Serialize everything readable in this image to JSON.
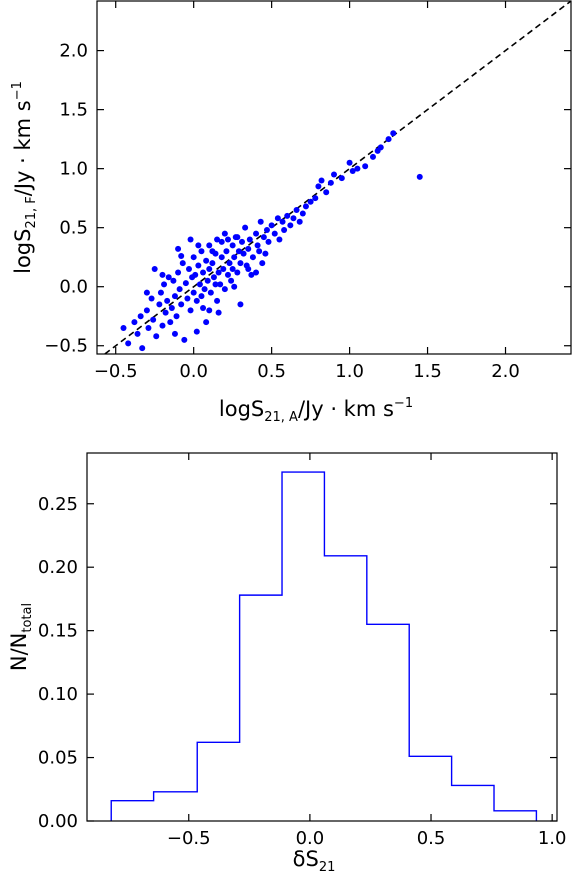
{
  "chart_data": [
    {
      "type": "scatter",
      "xlabel": {
        "main": "logS",
        "sub": "21, A",
        "unit": "/Jy · km s",
        "sup": "−1"
      },
      "ylabel": {
        "main": "logS",
        "sub": "21, F",
        "unit": "/Jy · km s",
        "sup": "−1"
      },
      "xlim": [
        -0.62,
        2.42
      ],
      "ylim": [
        -0.57,
        2.42
      ],
      "xticks": [
        -0.5,
        0.0,
        0.5,
        1.0,
        1.5,
        2.0
      ],
      "yticks": [
        -0.5,
        0.0,
        0.5,
        1.0,
        1.5,
        2.0
      ],
      "xtick_labels": [
        "−0.5",
        "0.0",
        "0.5",
        "1.0",
        "1.5",
        "2.0"
      ],
      "ytick_labels": [
        "−0.5",
        "0.0",
        "0.5",
        "1.0",
        "1.5",
        "2.0"
      ],
      "reference_line": {
        "style": "dashed",
        "color": "#000000",
        "slope": 1,
        "intercept": 0
      },
      "point_color": "#0000ff",
      "points": [
        [
          -0.45,
          -0.35
        ],
        [
          -0.42,
          -0.48
        ],
        [
          -0.38,
          -0.3
        ],
        [
          -0.36,
          -0.4
        ],
        [
          -0.34,
          -0.25
        ],
        [
          -0.33,
          -0.52
        ],
        [
          -0.3,
          -0.2
        ],
        [
          -0.29,
          -0.35
        ],
        [
          -0.27,
          -0.1
        ],
        [
          -0.26,
          -0.28
        ],
        [
          -0.25,
          0.15
        ],
        [
          -0.24,
          -0.42
        ],
        [
          -0.22,
          -0.15
        ],
        [
          -0.21,
          -0.05
        ],
        [
          -0.2,
          -0.33
        ],
        [
          -0.19,
          0.02
        ],
        [
          -0.18,
          -0.22
        ],
        [
          -0.17,
          -0.12
        ],
        [
          -0.16,
          0.08
        ],
        [
          -0.15,
          -0.3
        ],
        [
          -0.14,
          -0.18
        ],
        [
          -0.13,
          0.05
        ],
        [
          -0.12,
          -0.08
        ],
        [
          -0.11,
          -0.25
        ],
        [
          -0.1,
          0.12
        ],
        [
          -0.09,
          -0.02
        ],
        [
          -0.08,
          -0.15
        ],
        [
          -0.07,
          0.2
        ],
        [
          -0.06,
          -0.45
        ],
        [
          -0.05,
          0.03
        ],
        [
          -0.04,
          -0.1
        ],
        [
          -0.03,
          0.15
        ],
        [
          -0.02,
          -0.2
        ],
        [
          -0.01,
          0.08
        ],
        [
          0.0,
          -0.05
        ],
        [
          0.0,
          0.25
        ],
        [
          0.01,
          0.1
        ],
        [
          0.02,
          -0.12
        ],
        [
          0.03,
          0.18
        ],
        [
          0.04,
          0.02
        ],
        [
          0.05,
          -0.08
        ],
        [
          0.05,
          0.3
        ],
        [
          0.06,
          0.12
        ],
        [
          0.07,
          -0.02
        ],
        [
          0.08,
          0.22
        ],
        [
          0.08,
          -0.3
        ],
        [
          0.09,
          0.05
        ],
        [
          0.1,
          0.15
        ],
        [
          0.1,
          0.35
        ],
        [
          0.11,
          -0.05
        ],
        [
          0.12,
          0.2
        ],
        [
          0.13,
          0.08
        ],
        [
          0.14,
          0.28
        ],
        [
          0.15,
          -0.12
        ],
        [
          0.15,
          0.4
        ],
        [
          0.16,
          0.12
        ],
        [
          0.17,
          0.02
        ],
        [
          0.18,
          0.25
        ],
        [
          0.19,
          0.15
        ],
        [
          0.2,
          0.45
        ],
        [
          0.2,
          -0.02
        ],
        [
          0.21,
          0.3
        ],
        [
          0.22,
          0.1
        ],
        [
          0.23,
          0.2
        ],
        [
          0.24,
          0.05
        ],
        [
          0.25,
          0.35
        ],
        [
          0.25,
          0.15
        ],
        [
          0.26,
          0.25
        ],
        [
          0.27,
          0.42
        ],
        [
          0.28,
          0.12
        ],
        [
          0.29,
          0.3
        ],
        [
          0.3,
          0.2
        ],
        [
          0.3,
          -0.15
        ],
        [
          0.31,
          0.38
        ],
        [
          0.32,
          0.28
        ],
        [
          0.33,
          0.5
        ],
        [
          0.34,
          0.18
        ],
        [
          0.35,
          0.32
        ],
        [
          0.36,
          0.4
        ],
        [
          0.37,
          0.1
        ],
        [
          0.38,
          0.25
        ],
        [
          0.4,
          0.45
        ],
        [
          0.41,
          0.35
        ],
        [
          0.42,
          0.3
        ],
        [
          0.43,
          0.55
        ],
        [
          0.45,
          0.42
        ],
        [
          0.46,
          0.28
        ],
        [
          0.47,
          0.48
        ],
        [
          0.48,
          0.38
        ],
        [
          0.5,
          0.52
        ],
        [
          0.52,
          0.45
        ],
        [
          0.54,
          0.58
        ],
        [
          0.55,
          0.4
        ],
        [
          0.57,
          0.55
        ],
        [
          0.58,
          0.48
        ],
        [
          0.6,
          0.6
        ],
        [
          0.62,
          0.52
        ],
        [
          0.64,
          0.58
        ],
        [
          0.66,
          0.65
        ],
        [
          0.68,
          0.55
        ],
        [
          0.7,
          0.62
        ],
        [
          0.72,
          0.68
        ],
        [
          0.75,
          0.72
        ],
        [
          0.78,
          0.75
        ],
        [
          0.8,
          0.85
        ],
        [
          0.82,
          0.9
        ],
        [
          0.85,
          0.8
        ],
        [
          0.88,
          0.88
        ],
        [
          0.9,
          0.95
        ],
        [
          0.95,
          0.92
        ],
        [
          1.0,
          1.05
        ],
        [
          1.02,
          0.98
        ],
        [
          1.05,
          1.0
        ],
        [
          1.1,
          1.02
        ],
        [
          1.15,
          1.1
        ],
        [
          1.18,
          1.15
        ],
        [
          1.2,
          1.18
        ],
        [
          1.25,
          1.25
        ],
        [
          1.28,
          1.3
        ],
        [
          1.45,
          0.93
        ],
        [
          -0.1,
          0.32
        ],
        [
          -0.02,
          0.4
        ],
        [
          0.1,
          -0.2
        ],
        [
          0.18,
          0.38
        ],
        [
          0.28,
          0.42
        ],
        [
          -0.08,
          0.26
        ],
        [
          0.03,
          0.35
        ],
        [
          0.12,
          0.3
        ],
        [
          0.06,
          -0.18
        ],
        [
          0.22,
          0.4
        ],
        [
          0.35,
          0.15
        ],
        [
          0.44,
          0.2
        ],
        [
          0.4,
          0.12
        ],
        [
          -0.2,
          0.1
        ],
        [
          -0.3,
          -0.05
        ],
        [
          -0.12,
          -0.4
        ],
        [
          0.02,
          -0.38
        ],
        [
          0.16,
          -0.22
        ],
        [
          0.26,
          0.0
        ],
        [
          0.14,
          0.02
        ]
      ]
    },
    {
      "type": "histogram",
      "xlabel": {
        "main": "δS",
        "sub": "21"
      },
      "ylabel": {
        "main": "N/N",
        "sub": "total"
      },
      "xlim": [
        -0.92,
        1.02
      ],
      "ylim": [
        0.0,
        0.29
      ],
      "xticks": [
        -0.5,
        0.0,
        0.5,
        1.0
      ],
      "yticks": [
        0.0,
        0.05,
        0.1,
        0.15,
        0.2,
        0.25
      ],
      "xtick_labels": [
        "−0.5",
        "0.0",
        "0.5",
        "1.0"
      ],
      "ytick_labels": [
        "0.00",
        "0.05",
        "0.10",
        "0.15",
        "0.20",
        "0.25"
      ],
      "line_color": "#0000ff",
      "bin_edges": [
        -0.82,
        -0.645,
        -0.465,
        -0.29,
        -0.115,
        0.06,
        0.235,
        0.41,
        0.585,
        0.76,
        0.935
      ],
      "values": [
        0.016,
        0.023,
        0.062,
        0.178,
        0.275,
        0.209,
        0.155,
        0.051,
        0.028,
        0.008
      ]
    }
  ]
}
